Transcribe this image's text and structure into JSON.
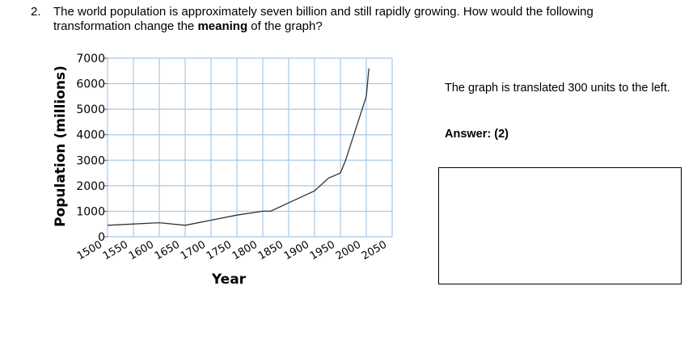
{
  "question": {
    "number": "2.",
    "text_before": "The world population is approximately seven billion and still rapidly growing. How would the following transformation change the ",
    "text_bold": "meaning",
    "text_after": " of the graph?"
  },
  "side_note": "The graph is translated 300 units to the left.",
  "answer_text": "Answer: (2)",
  "colors": {
    "grid": "#a9c8e4",
    "line": "#333333",
    "text": "#000000"
  },
  "chart_data": {
    "type": "line",
    "title": "",
    "xlabel": "Year",
    "ylabel": "Population (millions)",
    "xlim": [
      1500,
      2050
    ],
    "ylim": [
      0,
      7000
    ],
    "x_ticks": [
      "1500",
      "1550",
      "1600",
      "1650",
      "1700",
      "1750",
      "1800",
      "1850",
      "1900",
      "1950",
      "2000",
      "2050"
    ],
    "y_ticks": [
      "0",
      "1000",
      "2000",
      "3000",
      "4000",
      "5000",
      "6000",
      "7000"
    ],
    "grid": true,
    "series": [
      {
        "x": [
          1500,
          1600,
          1650,
          1700,
          1750,
          1800,
          1815,
          1900,
          1927,
          1950,
          1960,
          2000,
          2005
        ],
        "y": [
          450,
          550,
          450,
          650,
          850,
          1000,
          1000,
          1800,
          2300,
          2500,
          3000,
          5500,
          6600
        ]
      }
    ]
  }
}
